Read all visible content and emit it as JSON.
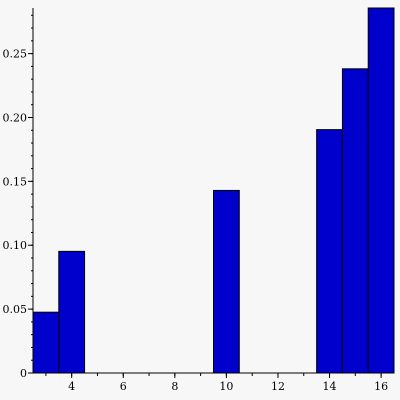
{
  "chart_data": {
    "type": "bar",
    "title": "",
    "xlabel": "",
    "ylabel": "",
    "bar_color": "#0000cc",
    "background": "#f7f7f7",
    "xlim": [
      2.5,
      16.5
    ],
    "ylim": [
      0,
      0.2857
    ],
    "x_ticks": [
      4,
      6,
      8,
      10,
      12,
      14,
      16
    ],
    "x_tick_labels": [
      "4",
      "6",
      "8",
      "10",
      "12",
      "14",
      "16"
    ],
    "y_ticks": [
      0,
      0.05,
      0.1,
      0.15,
      0.2,
      0.25
    ],
    "y_tick_labels": [
      "0",
      "0.05",
      "0.10",
      "0.15",
      "0.20",
      "0.25"
    ],
    "bar_width": 1,
    "x": [
      3,
      4,
      10,
      14,
      15,
      16
    ],
    "values": [
      0.0476,
      0.0952,
      0.1429,
      0.1905,
      0.2381,
      0.2857
    ],
    "grid": false,
    "legend": "none"
  }
}
